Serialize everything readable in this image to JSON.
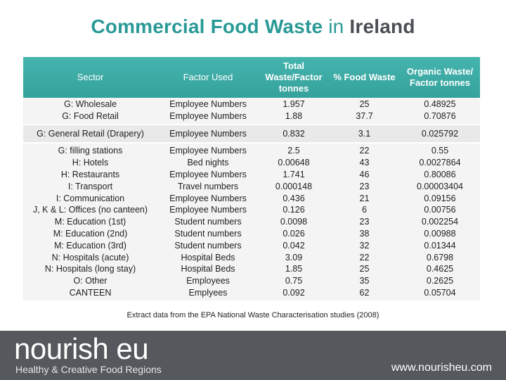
{
  "title": {
    "part1": "Commercial Food Waste",
    "part2": " in ",
    "part3": "Ireland"
  },
  "table": {
    "headers": {
      "sector": "Sector",
      "factor": "Factor Used",
      "total": "Total Waste/Factor tonnes",
      "percent": "% Food Waste",
      "organic": "Organic Waste/ Factor tonnes"
    },
    "groups": [
      {
        "sector": [
          "G: Wholesale",
          "G: Food Retail"
        ],
        "factor": [
          "Employee Numbers",
          "Employee Numbers"
        ],
        "total": [
          "1.957",
          "1.88"
        ],
        "percent": [
          "25",
          "37.7"
        ],
        "organic": [
          "0.48925",
          "0.70876"
        ]
      },
      {
        "sector": [
          "G: General Retail (Drapery)"
        ],
        "factor": [
          "Employee Numbers"
        ],
        "total": [
          "0.832"
        ],
        "percent": [
          "3.1"
        ],
        "organic": [
          "0.025792"
        ]
      },
      {
        "sector": [
          "G: filling stations",
          "H: Hotels",
          "H: Restaurants",
          "I: Transport",
          "I: Communication",
          "J, K & L: Offices (no canteen)",
          "M: Education (1st)",
          "M: Education (2nd)",
          "M: Education (3rd)",
          "N: Hospitals (acute)",
          "N: Hospitals (long stay)",
          "O: Other",
          "CANTEEN"
        ],
        "factor": [
          "Employee Numbers",
          "Bed nights",
          "Employee Numbers",
          "Travel numbers",
          "Employee Numbers",
          "Employee Numbers",
          "Student numbers",
          "Student numbers",
          "Student numbers",
          "Hospital Beds",
          "Hospital Beds",
          "Employees",
          "Emplyees"
        ],
        "total": [
          "2.5",
          "0.00648",
          "1.741",
          "0.000148",
          "0.436",
          "0.126",
          "0.0098",
          "0.026",
          "0.042",
          "3.09",
          "1.85",
          "0.75",
          "0.092"
        ],
        "percent": [
          "22",
          "43",
          "46",
          "23",
          "21",
          "6",
          "23",
          "38",
          "32",
          "22",
          "25",
          "35",
          "62"
        ],
        "organic": [
          "0.55",
          "0.0027864",
          "0.80086",
          "0.00003404",
          "0.09156",
          "0.00756",
          "0.002254",
          "0.00988",
          "0.01344",
          "0.6798",
          "0.4625",
          "0.2625",
          "0.05704"
        ]
      }
    ]
  },
  "caption": "Extract data from the EPA National Waste Characterisation studies (2008)",
  "footer": {
    "logo": "nourish eu",
    "tagline": "Healthy & Creative Food Regions",
    "website": "www.nourisheu.com",
    "background": "#55585c"
  },
  "colors": {
    "accent": "#2a9a96",
    "header_bg": "#3aa8a2",
    "title_dark": "#4a4f55"
  }
}
